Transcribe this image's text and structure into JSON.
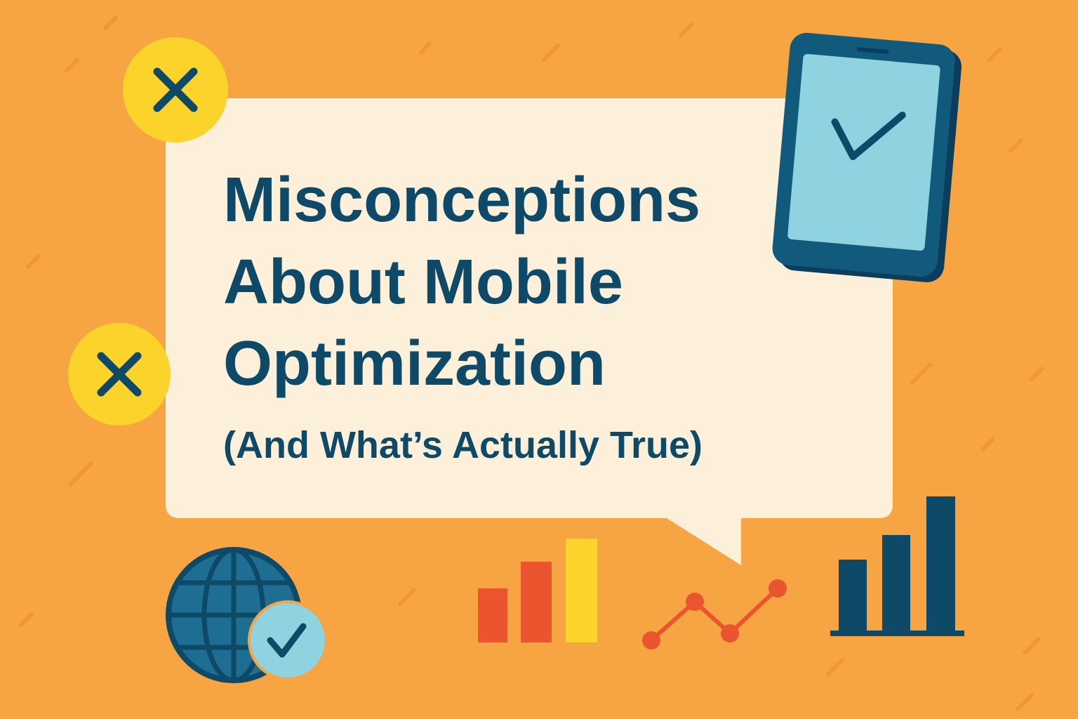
{
  "header": {
    "title": [
      "Misconceptions",
      "About Mobile",
      "Optimization"
    ],
    "subtitle": "(And What’s Actually True)"
  }
}
